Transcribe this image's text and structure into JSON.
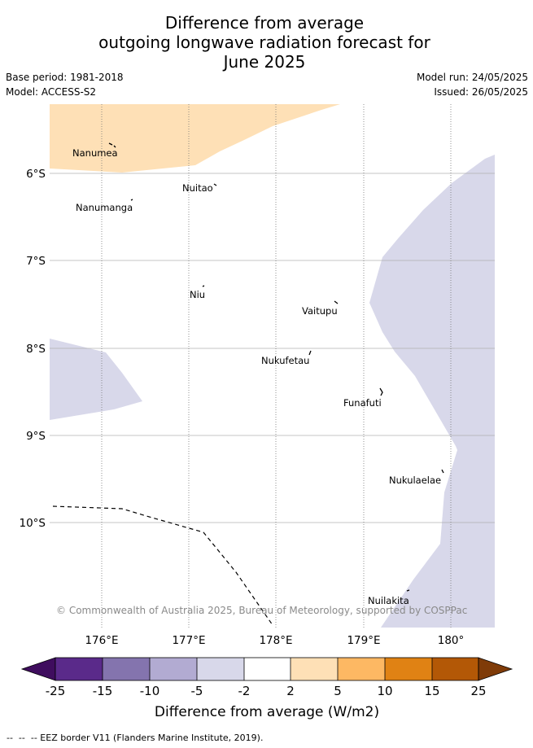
{
  "title": {
    "line1": "Difference from average",
    "line2": "outgoing longwave radiation forecast for",
    "line3": "June 2025"
  },
  "meta": {
    "base_period": "Base period: 1981-2018",
    "model": "Model: ACCESS-S2",
    "model_run": "Model run: 24/05/2025",
    "issued": "Issued: 26/05/2025"
  },
  "map": {
    "lat_labels": [
      "6°S",
      "7°S",
      "8°S",
      "9°S",
      "10°S"
    ],
    "lon_labels": [
      "176°E",
      "177°E",
      "178°E",
      "179°E",
      "180°"
    ],
    "places": [
      {
        "name": "Nanumea"
      },
      {
        "name": "Nuitao"
      },
      {
        "name": "Nanumanga"
      },
      {
        "name": "Niu"
      },
      {
        "name": "Vaitupu"
      },
      {
        "name": "Nukufetau"
      },
      {
        "name": "Funafuti"
      },
      {
        "name": "Nukulaelae"
      },
      {
        "name": "Nuilakita"
      }
    ],
    "copyright": "© Commonwealth of Australia 2025, Bureau of Meteorology, supported by COSPPac"
  },
  "colorbar": {
    "label": "Difference from average (W/m2)",
    "ticks": [
      "-25",
      "-15",
      "-10",
      "-5",
      "-2",
      "2",
      "5",
      "10",
      "15",
      "25"
    ],
    "colors": {
      "under": "#3f0d5e",
      "c1": "#5a2a8a",
      "c2": "#8474ae",
      "c3": "#b2abd2",
      "c4": "#d8d8ea",
      "c5": "#ffffff",
      "c6": "#fee0b6",
      "c7": "#fdb863",
      "c8": "#e08214",
      "c9": "#b35806",
      "over": "#7f3b08"
    }
  },
  "footnote": "--  --  -- EEZ border V11 (Flanders Marine Institute, 2019)."
}
